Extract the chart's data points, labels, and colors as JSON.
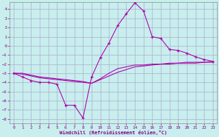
{
  "xlabel": "Windchill (Refroidissement éolien,°C)",
  "bg_color": "#c8eeee",
  "line_color": "#aa00aa",
  "grid_color": "#aaaacc",
  "xlim": [
    -0.5,
    23.5
  ],
  "ylim": [
    -8.5,
    4.8
  ],
  "xticks": [
    0,
    1,
    2,
    3,
    4,
    5,
    6,
    7,
    8,
    9,
    10,
    11,
    12,
    13,
    14,
    15,
    16,
    17,
    18,
    19,
    20,
    21,
    22,
    23
  ],
  "yticks": [
    -8,
    -7,
    -6,
    -5,
    -4,
    -3,
    -2,
    -1,
    0,
    1,
    2,
    3,
    4
  ],
  "line1_x": [
    0,
    1,
    2,
    3,
    4,
    5,
    6,
    7,
    8,
    9,
    10,
    11,
    12,
    13,
    14,
    15,
    16,
    17,
    18,
    19,
    20,
    21,
    22,
    23
  ],
  "line1_y": [
    -3.0,
    -3.4,
    -3.8,
    -4.0,
    -4.0,
    -4.2,
    -6.5,
    -6.5,
    -7.9,
    -3.4,
    -1.3,
    0.3,
    2.2,
    3.5,
    4.7,
    3.8,
    1.0,
    0.8,
    -0.4,
    -0.5,
    -0.8,
    -1.2,
    -1.5,
    -1.7
  ],
  "line2_x": [
    0,
    1,
    2,
    3,
    4,
    5,
    6,
    7,
    8,
    9,
    10,
    11,
    12,
    13,
    14,
    15,
    16,
    17,
    18,
    19,
    20,
    21,
    22,
    23
  ],
  "line2_y": [
    -3.0,
    -3.1,
    -3.3,
    -3.5,
    -3.6,
    -3.7,
    -3.8,
    -3.9,
    -4.0,
    -4.1,
    -3.7,
    -3.3,
    -2.9,
    -2.6,
    -2.3,
    -2.2,
    -2.1,
    -2.0,
    -2.0,
    -1.9,
    -1.9,
    -1.9,
    -1.8,
    -1.8
  ],
  "line3_x": [
    0,
    1,
    2,
    3,
    4,
    5,
    6,
    7,
    8,
    9,
    10,
    11,
    12,
    13,
    14,
    15,
    16,
    17,
    18,
    19,
    20,
    21,
    22,
    23
  ],
  "line3_y": [
    -3.0,
    -3.0,
    -3.2,
    -3.4,
    -3.5,
    -3.6,
    -3.7,
    -3.8,
    -3.9,
    -4.1,
    -3.6,
    -3.0,
    -2.5,
    -2.3,
    -2.1,
    -2.1,
    -2.0,
    -2.0,
    -1.9,
    -1.9,
    -1.8,
    -1.8,
    -1.8,
    -1.7
  ]
}
